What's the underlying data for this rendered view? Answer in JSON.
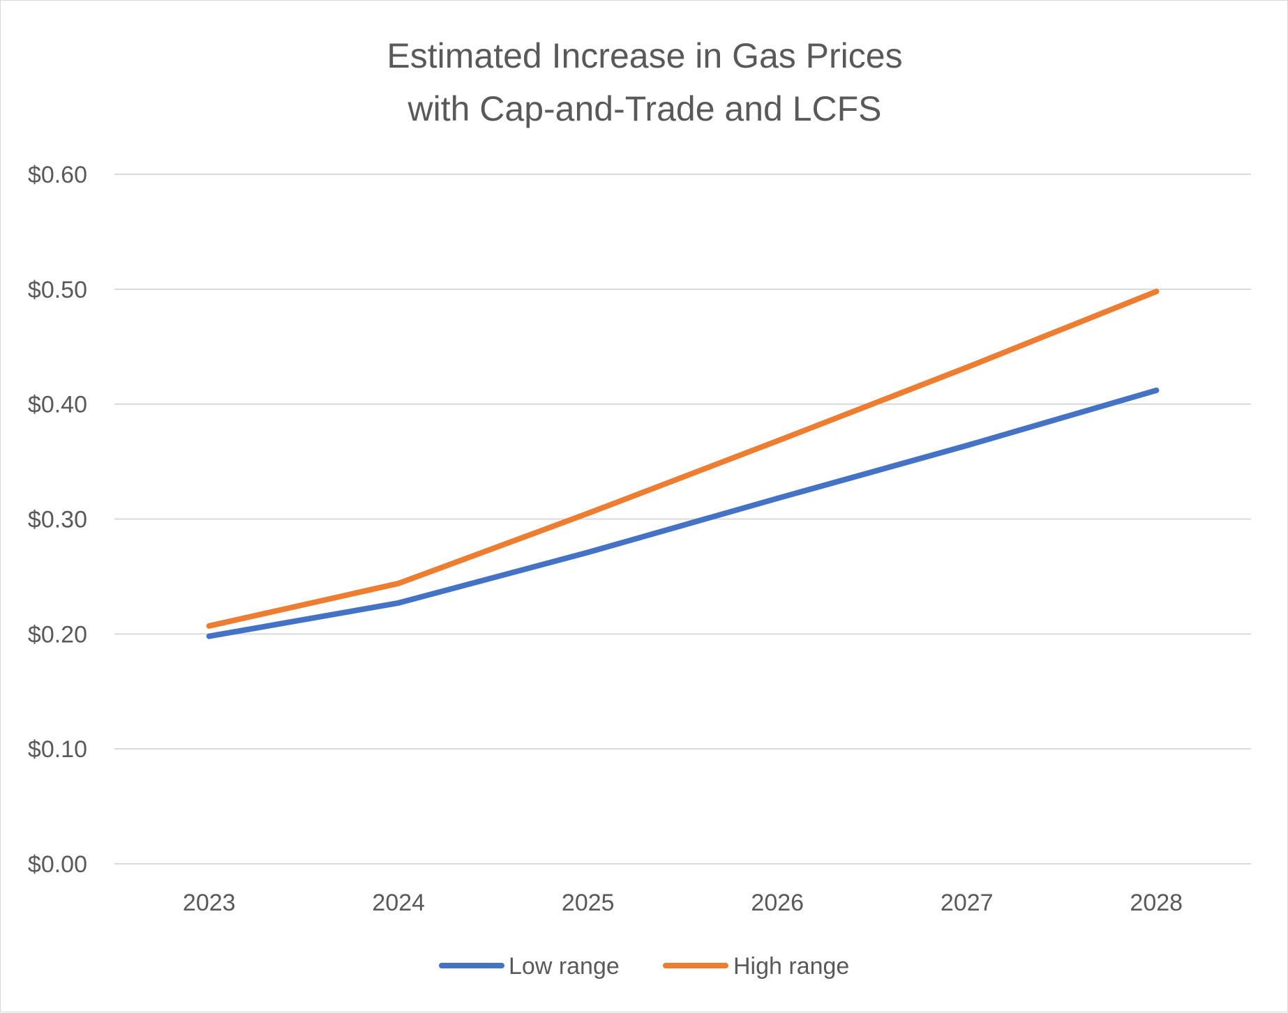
{
  "chart_data": {
    "type": "line",
    "title": "Estimated Increase in Gas Prices with Cap-and-Trade and LCFS",
    "title_lines": [
      "Estimated Increase in Gas Prices",
      "with Cap-and-Trade and LCFS"
    ],
    "xlabel": "",
    "ylabel": "",
    "categories": [
      "2023",
      "2024",
      "2025",
      "2026",
      "2027",
      "2028"
    ],
    "ylim": [
      0,
      0.6
    ],
    "yticks": [
      0,
      0.1,
      0.2,
      0.3,
      0.4,
      0.5,
      0.6
    ],
    "ytick_labels": [
      "$0.00",
      "$0.10",
      "$0.20",
      "$0.30",
      "$0.40",
      "$0.50",
      "$0.60"
    ],
    "grid": true,
    "legend_position": "bottom",
    "series": [
      {
        "name": "Low range",
        "color": "#4472C4",
        "values": [
          0.198,
          0.227,
          0.271,
          0.318,
          0.364,
          0.412
        ]
      },
      {
        "name": "High range",
        "color": "#ED7D31",
        "values": [
          0.207,
          0.244,
          0.305,
          0.368,
          0.432,
          0.498
        ]
      }
    ]
  }
}
